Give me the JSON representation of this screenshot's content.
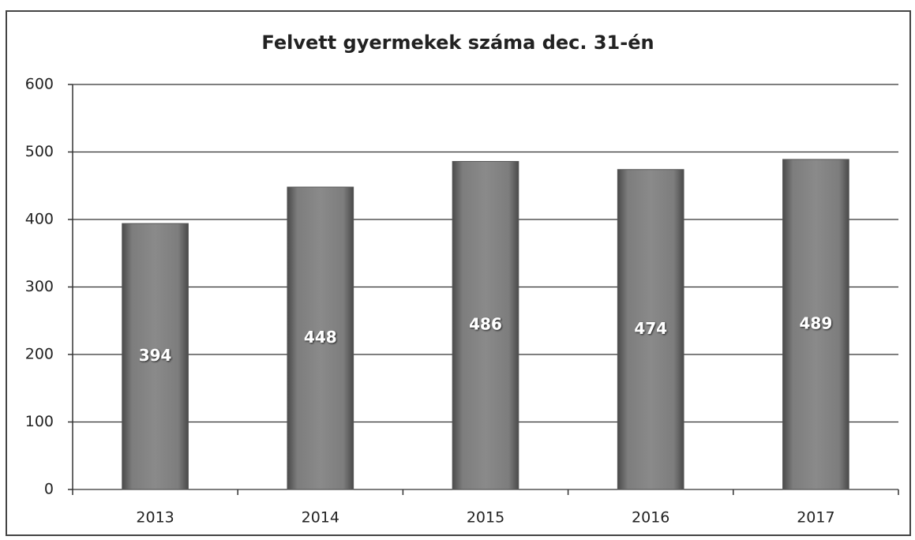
{
  "chart_data": {
    "type": "bar",
    "title": "Felvett gyermekek száma dec. 31-én",
    "categories": [
      "2013",
      "2014",
      "2015",
      "2016",
      "2017"
    ],
    "values": [
      394,
      448,
      486,
      474,
      489
    ],
    "color": "#7a7a7a",
    "ylim": [
      0,
      600
    ],
    "yticks": [
      0,
      100,
      200,
      300,
      400,
      500,
      600
    ],
    "grid": true
  }
}
